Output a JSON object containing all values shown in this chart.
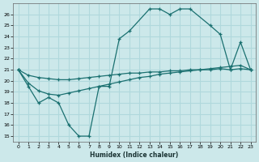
{
  "xlabel": "Humidex (Indice chaleur)",
  "bg_color": "#cce8ea",
  "grid_color": "#b0d8dc",
  "line_color": "#1a7070",
  "xlim": [
    -0.5,
    23.5
  ],
  "ylim": [
    14.5,
    27.0
  ],
  "xticks": [
    0,
    1,
    2,
    3,
    4,
    5,
    6,
    7,
    8,
    9,
    10,
    11,
    12,
    13,
    14,
    15,
    16,
    17,
    18,
    19,
    20,
    21,
    22,
    23
  ],
  "yticks": [
    15,
    16,
    17,
    18,
    19,
    20,
    21,
    22,
    23,
    24,
    25,
    26
  ],
  "curve1_x": [
    0,
    1,
    2,
    3,
    4,
    5,
    6,
    7,
    8,
    9,
    10,
    11,
    13,
    14,
    15,
    16,
    17,
    19,
    20,
    21,
    22,
    23
  ],
  "curve1_y": [
    21.0,
    19.5,
    18.0,
    18.5,
    18.0,
    16.0,
    15.0,
    15.0,
    19.5,
    19.5,
    23.8,
    24.5,
    26.5,
    26.5,
    26.0,
    26.5,
    26.5,
    25.0,
    24.2,
    21.0,
    23.5,
    21.0
  ],
  "curve2_x": [
    0,
    1,
    2,
    3,
    4,
    5,
    6,
    7,
    8,
    9,
    10,
    11,
    12,
    13,
    14,
    15,
    16,
    17,
    18,
    19,
    20,
    21,
    22,
    23
  ],
  "curve2_y": [
    21.0,
    19.8,
    19.1,
    18.8,
    18.7,
    18.9,
    19.1,
    19.3,
    19.5,
    19.7,
    19.9,
    20.1,
    20.3,
    20.4,
    20.6,
    20.7,
    20.8,
    20.9,
    21.0,
    21.1,
    21.2,
    21.3,
    21.4,
    21.0
  ],
  "curve3_x": [
    0,
    1,
    2,
    3,
    4,
    5,
    6,
    7,
    8,
    9,
    10,
    11,
    12,
    13,
    14,
    15,
    16,
    17,
    18,
    19,
    20,
    21,
    22,
    23
  ],
  "curve3_y": [
    21.0,
    20.5,
    20.3,
    20.2,
    20.1,
    20.1,
    20.2,
    20.3,
    20.4,
    20.5,
    20.6,
    20.7,
    20.7,
    20.8,
    20.8,
    20.9,
    20.9,
    21.0,
    21.0,
    21.0,
    21.1,
    21.0,
    21.1,
    21.0
  ]
}
